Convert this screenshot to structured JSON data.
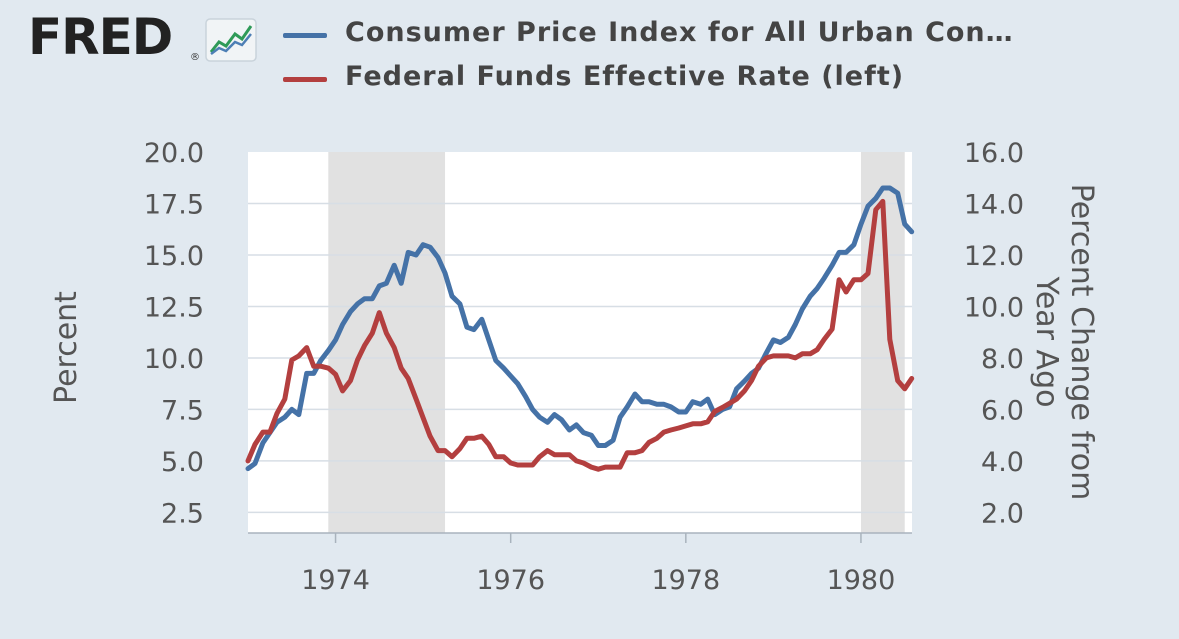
{
  "logo": {
    "text": "FRED",
    "registered": "®"
  },
  "colors": {
    "page_background": "#e1e9f0",
    "plot_background": "#ffffff",
    "recession_shading": "#e1e1e1",
    "cpi_line": "#4572a7",
    "fedfunds_line": "#b33f3f",
    "grid": "#d7dee5"
  },
  "chart_data": {
    "type": "line",
    "title": "",
    "legend_position": "top",
    "grid": true,
    "x_axis": {
      "range": [
        1973.0,
        1980.583
      ],
      "ticks": [
        "1974",
        "1976",
        "1978",
        "1980"
      ]
    },
    "y_left": {
      "label": "Percent",
      "range": [
        1.5,
        20.0
      ],
      "ticks": [
        "20.0",
        "17.5",
        "15.0",
        "12.5",
        "10.0",
        "7.5",
        "5.0",
        "2.5"
      ]
    },
    "y_right": {
      "label_line1": "Percent Change from",
      "label_line2": "Year Ago",
      "range": [
        1.2,
        16.0
      ],
      "ticks": [
        "16.0",
        "14.0",
        "12.0",
        "10.0",
        "8.0",
        "6.0",
        "4.0",
        "2.0"
      ]
    },
    "recessions": [
      [
        1973.917,
        1975.25
      ],
      [
        1980.0,
        1980.5
      ]
    ],
    "series": [
      {
        "name": "Consumer Price Index for All Urban Con…",
        "axis": "right",
        "points": [
          [
            1973.0,
            3.7
          ],
          [
            1973.08,
            3.9
          ],
          [
            1973.17,
            4.7
          ],
          [
            1973.25,
            5.1
          ],
          [
            1973.33,
            5.5
          ],
          [
            1973.42,
            5.7
          ],
          [
            1973.5,
            6.0
          ],
          [
            1973.58,
            5.8
          ],
          [
            1973.67,
            7.4
          ],
          [
            1973.75,
            7.4
          ],
          [
            1973.83,
            7.9
          ],
          [
            1973.92,
            8.3
          ],
          [
            1974.0,
            8.7
          ],
          [
            1974.08,
            9.3
          ],
          [
            1974.17,
            9.8
          ],
          [
            1974.25,
            10.1
          ],
          [
            1974.33,
            10.3
          ],
          [
            1974.42,
            10.3
          ],
          [
            1974.5,
            10.8
          ],
          [
            1974.58,
            10.9
          ],
          [
            1974.67,
            11.6
          ],
          [
            1974.75,
            10.9
          ],
          [
            1974.83,
            12.1
          ],
          [
            1974.92,
            12.0
          ],
          [
            1975.0,
            12.4
          ],
          [
            1975.08,
            12.3
          ],
          [
            1975.17,
            11.9
          ],
          [
            1975.25,
            11.3
          ],
          [
            1975.33,
            10.4
          ],
          [
            1975.42,
            10.1
          ],
          [
            1975.5,
            9.2
          ],
          [
            1975.58,
            9.1
          ],
          [
            1975.67,
            9.5
          ],
          [
            1975.75,
            8.7
          ],
          [
            1975.83,
            7.9
          ],
          [
            1975.92,
            7.6
          ],
          [
            1976.0,
            7.3
          ],
          [
            1976.08,
            7.0
          ],
          [
            1976.17,
            6.5
          ],
          [
            1976.25,
            6.0
          ],
          [
            1976.33,
            5.7
          ],
          [
            1976.42,
            5.5
          ],
          [
            1976.5,
            5.8
          ],
          [
            1976.58,
            5.6
          ],
          [
            1976.67,
            5.2
          ],
          [
            1976.75,
            5.4
          ],
          [
            1976.83,
            5.1
          ],
          [
            1976.92,
            5.0
          ],
          [
            1977.0,
            4.6
          ],
          [
            1977.08,
            4.6
          ],
          [
            1977.17,
            4.8
          ],
          [
            1977.25,
            5.7
          ],
          [
            1977.33,
            6.1
          ],
          [
            1977.42,
            6.6
          ],
          [
            1977.5,
            6.3
          ],
          [
            1977.58,
            6.3
          ],
          [
            1977.67,
            6.2
          ],
          [
            1977.75,
            6.2
          ],
          [
            1977.83,
            6.1
          ],
          [
            1977.92,
            5.9
          ],
          [
            1978.0,
            5.9
          ],
          [
            1978.08,
            6.3
          ],
          [
            1978.17,
            6.2
          ],
          [
            1978.25,
            6.4
          ],
          [
            1978.33,
            5.8
          ],
          [
            1978.42,
            6.0
          ],
          [
            1978.5,
            6.1
          ],
          [
            1978.58,
            6.8
          ],
          [
            1978.67,
            7.1
          ],
          [
            1978.75,
            7.4
          ],
          [
            1978.83,
            7.6
          ],
          [
            1978.92,
            8.2
          ],
          [
            1979.0,
            8.7
          ],
          [
            1979.08,
            8.6
          ],
          [
            1979.17,
            8.8
          ],
          [
            1979.25,
            9.3
          ],
          [
            1979.33,
            9.9
          ],
          [
            1979.42,
            10.4
          ],
          [
            1979.5,
            10.7
          ],
          [
            1979.58,
            11.1
          ],
          [
            1979.67,
            11.6
          ],
          [
            1979.75,
            12.1
          ],
          [
            1979.83,
            12.1
          ],
          [
            1979.92,
            12.4
          ],
          [
            1980.0,
            13.2
          ],
          [
            1980.08,
            13.9
          ],
          [
            1980.17,
            14.2
          ],
          [
            1980.25,
            14.6
          ],
          [
            1980.33,
            14.6
          ],
          [
            1980.42,
            14.4
          ],
          [
            1980.5,
            13.2
          ],
          [
            1980.58,
            12.9
          ]
        ]
      },
      {
        "name": "Federal Funds Effective Rate (left)",
        "axis": "left",
        "points": [
          [
            1973.0,
            5.0
          ],
          [
            1973.08,
            5.8
          ],
          [
            1973.17,
            6.4
          ],
          [
            1973.25,
            6.4
          ],
          [
            1973.33,
            7.3
          ],
          [
            1973.42,
            8.0
          ],
          [
            1973.5,
            9.9
          ],
          [
            1973.58,
            10.1
          ],
          [
            1973.67,
            10.5
          ],
          [
            1973.75,
            9.6
          ],
          [
            1973.83,
            9.6
          ],
          [
            1973.92,
            9.5
          ],
          [
            1974.0,
            9.2
          ],
          [
            1974.08,
            8.4
          ],
          [
            1974.17,
            8.9
          ],
          [
            1974.25,
            9.9
          ],
          [
            1974.33,
            10.6
          ],
          [
            1974.42,
            11.2
          ],
          [
            1974.5,
            12.2
          ],
          [
            1974.58,
            11.2
          ],
          [
            1974.67,
            10.5
          ],
          [
            1974.75,
            9.5
          ],
          [
            1974.83,
            9.0
          ],
          [
            1974.92,
            8.0
          ],
          [
            1975.0,
            7.1
          ],
          [
            1975.08,
            6.2
          ],
          [
            1975.17,
            5.5
          ],
          [
            1975.25,
            5.5
          ],
          [
            1975.33,
            5.2
          ],
          [
            1975.42,
            5.6
          ],
          [
            1975.5,
            6.1
          ],
          [
            1975.58,
            6.1
          ],
          [
            1975.67,
            6.2
          ],
          [
            1975.75,
            5.8
          ],
          [
            1975.83,
            5.2
          ],
          [
            1975.92,
            5.2
          ],
          [
            1976.0,
            4.9
          ],
          [
            1976.08,
            4.8
          ],
          [
            1976.17,
            4.8
          ],
          [
            1976.25,
            4.8
          ],
          [
            1976.33,
            5.2
          ],
          [
            1976.42,
            5.5
          ],
          [
            1976.5,
            5.3
          ],
          [
            1976.58,
            5.3
          ],
          [
            1976.67,
            5.3
          ],
          [
            1976.75,
            5.0
          ],
          [
            1976.83,
            4.9
          ],
          [
            1976.92,
            4.7
          ],
          [
            1977.0,
            4.6
          ],
          [
            1977.08,
            4.7
          ],
          [
            1977.17,
            4.7
          ],
          [
            1977.25,
            4.7
          ],
          [
            1977.33,
            5.4
          ],
          [
            1977.42,
            5.4
          ],
          [
            1977.5,
            5.5
          ],
          [
            1977.58,
            5.9
          ],
          [
            1977.67,
            6.1
          ],
          [
            1977.75,
            6.4
          ],
          [
            1977.83,
            6.5
          ],
          [
            1977.92,
            6.6
          ],
          [
            1978.0,
            6.7
          ],
          [
            1978.08,
            6.8
          ],
          [
            1978.17,
            6.8
          ],
          [
            1978.25,
            6.9
          ],
          [
            1978.33,
            7.4
          ],
          [
            1978.42,
            7.6
          ],
          [
            1978.5,
            7.8
          ],
          [
            1978.58,
            8.0
          ],
          [
            1978.67,
            8.4
          ],
          [
            1978.75,
            8.9
          ],
          [
            1978.83,
            9.6
          ],
          [
            1978.92,
            10.0
          ],
          [
            1979.0,
            10.1
          ],
          [
            1979.08,
            10.1
          ],
          [
            1979.17,
            10.1
          ],
          [
            1979.25,
            10.0
          ],
          [
            1979.33,
            10.2
          ],
          [
            1979.42,
            10.2
          ],
          [
            1979.5,
            10.4
          ],
          [
            1979.58,
            10.9
          ],
          [
            1979.67,
            11.4
          ],
          [
            1979.75,
            13.8
          ],
          [
            1979.83,
            13.2
          ],
          [
            1979.92,
            13.8
          ],
          [
            1980.0,
            13.8
          ],
          [
            1980.08,
            14.1
          ],
          [
            1980.17,
            17.2
          ],
          [
            1980.25,
            17.6
          ],
          [
            1980.33,
            10.9
          ],
          [
            1980.42,
            8.9
          ],
          [
            1980.5,
            8.5
          ],
          [
            1980.58,
            9.0
          ]
        ]
      }
    ]
  }
}
